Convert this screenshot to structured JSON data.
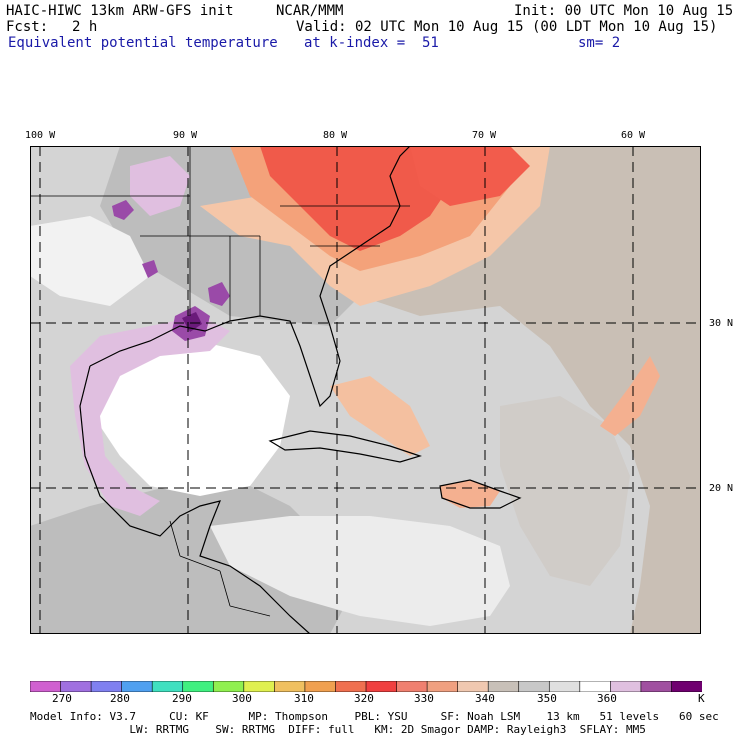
{
  "header": {
    "model": "HAIC-HIWC 13km ARW-GFS init",
    "org": "NCAR/MMM",
    "init": "Init: 00 UTC Mon 10 Aug 15",
    "fcst_label": "Fcst:",
    "fcst_value": "2 h",
    "valid": "Valid: 02 UTC Mon 10 Aug 15 (00 LDT Mon 10 Aug 15)",
    "field": "Equivalent potential temperature",
    "level": "at k-index =  51",
    "smooth": "sm= 2"
  },
  "map": {
    "lon_labels": [
      "100 W",
      "90 W",
      "80 W",
      "70 W",
      "60 W"
    ],
    "lat_labels": [
      "30 N",
      "20 N"
    ],
    "colors": {
      "background": "#c9bfb5",
      "ocean_light": "#d4d4d4",
      "land_gray": "#bdbdbd",
      "white": "#ffffff",
      "lavender": "#e0bfe0",
      "purple": "#9a4aa8",
      "dark_purple": "#6a1a7a",
      "salmon": "#f4a27a",
      "red": "#f05a4a",
      "peach": "#f5c6a8"
    }
  },
  "colorbar": {
    "unit": "K",
    "ticks": [
      "270",
      "280",
      "290",
      "300",
      "310",
      "320",
      "330",
      "340",
      "350",
      "360"
    ],
    "colors": [
      "#d060d0",
      "#a070e0",
      "#8080f0",
      "#50a0f0",
      "#40e0c0",
      "#40f080",
      "#90f050",
      "#e0f050",
      "#f0c060",
      "#f0a050",
      "#f07050",
      "#f04040",
      "#f08070",
      "#f0a080",
      "#f0c8b0",
      "#c8c0b8",
      "#c8c8c8",
      "#e0e0e0",
      "#ffffff",
      "#e0c0e0",
      "#a050a0",
      "#700070"
    ]
  },
  "footer": {
    "line1": "Model Info: V3.7     CU: KF      MP: Thompson    PBL: YSU     SF: Noah LSM    13 km   51 levels   60 sec",
    "line2": "               LW: RRTMG    SW: RRTMG  DIFF: full   KM: 2D Smagor DAMP: Rayleigh3  SFLAY: MM5"
  }
}
